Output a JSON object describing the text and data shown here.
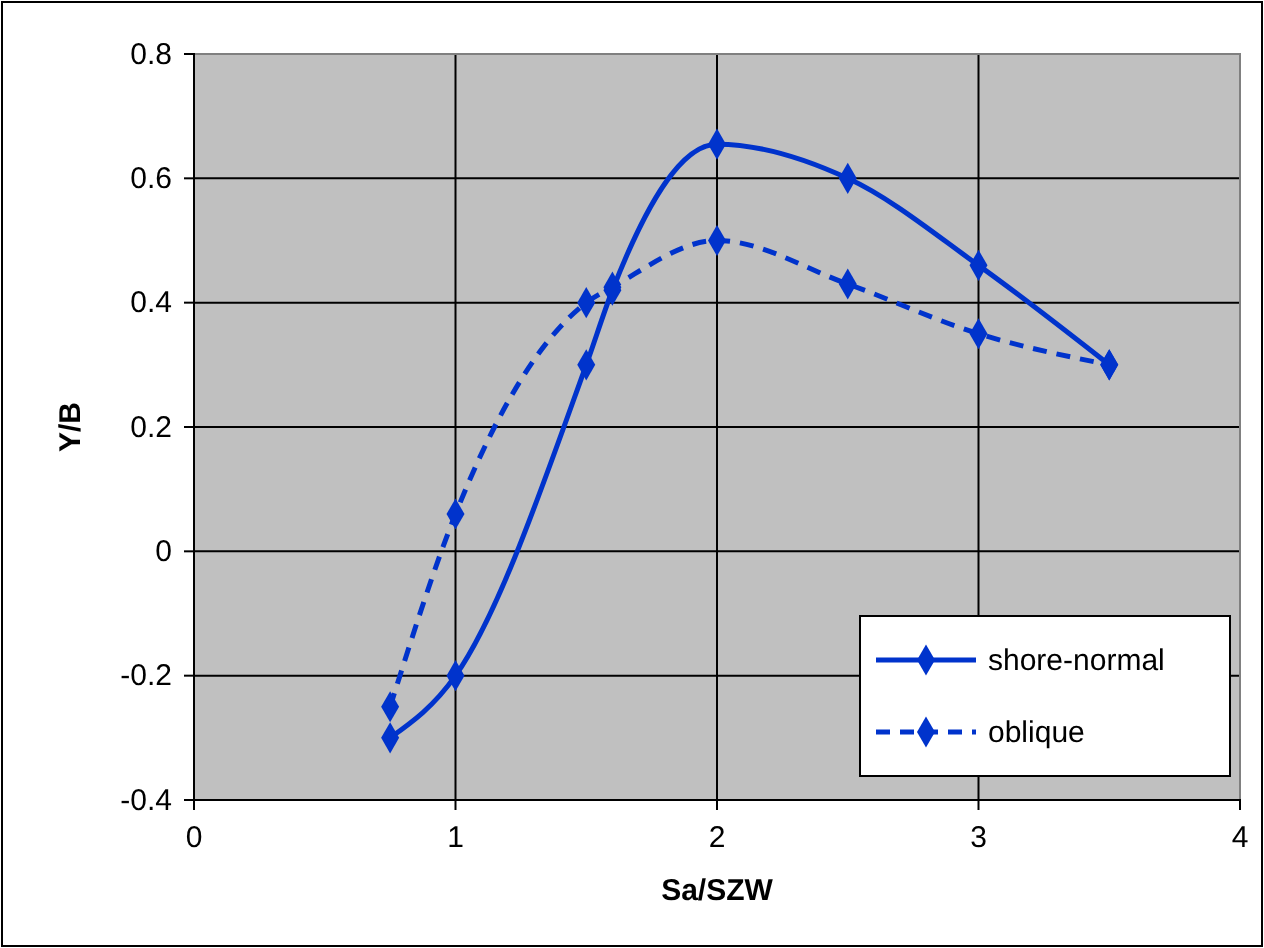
{
  "chart_data": {
    "type": "line",
    "xlabel": "Sa/SZW",
    "ylabel": "Y/B",
    "xlim": [
      0,
      4
    ],
    "xticks": [
      0,
      1,
      2,
      3,
      4
    ],
    "ylim": [
      -0.4,
      0.8
    ],
    "yticks": [
      -0.4,
      -0.2,
      0,
      0.2,
      0.4,
      0.6,
      0.8
    ],
    "grid": true,
    "legend": "bottom right",
    "marker": "diamond",
    "x": [
      0.75,
      1,
      1.5,
      1.6,
      2,
      2.5,
      3,
      3.5
    ],
    "series": [
      {
        "name": "shore-normal",
        "color": "#0033cc",
        "line_style": "solid",
        "values": [
          -0.3,
          -0.2,
          0.3,
          0.42,
          0.655,
          0.6,
          0.46,
          0.3
        ]
      },
      {
        "name": "oblique",
        "color": "#0033cc",
        "line_style": "dashed",
        "values": [
          -0.25,
          0.06,
          0.4,
          0.425,
          0.5,
          0.43,
          0.35,
          0.3
        ]
      }
    ]
  }
}
